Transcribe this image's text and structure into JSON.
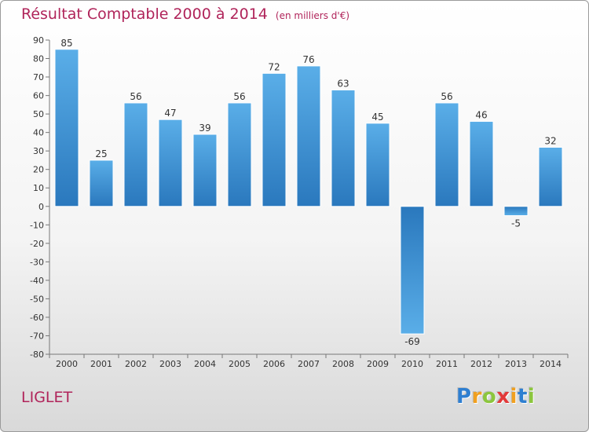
{
  "chart_data": {
    "type": "bar",
    "title": "Résultat Comptable 2000 à 2014",
    "unit_label": "(en milliers d'€)",
    "categories": [
      "2000",
      "2001",
      "2002",
      "2003",
      "2004",
      "2005",
      "2006",
      "2007",
      "2008",
      "2009",
      "2010",
      "2011",
      "2012",
      "2013",
      "2014"
    ],
    "values": [
      85,
      25,
      56,
      47,
      39,
      56,
      72,
      76,
      63,
      45,
      -69,
      56,
      46,
      -5,
      32
    ],
    "xlabel": "",
    "ylabel": "",
    "ylim": [
      -80,
      90
    ],
    "ytick_step": 10,
    "grid": false,
    "colors": {
      "bar_light": "#5aaee8",
      "bar_dark": "#2a78bd",
      "axis": "#777777",
      "text": "#333333"
    }
  },
  "commune": "LIGLET",
  "brand": {
    "letters": [
      "P",
      "r",
      "o",
      "x",
      "i",
      "t",
      "i"
    ],
    "colors": [
      "#2e7fd1",
      "#f0a020",
      "#8cc63e",
      "#e23a3a",
      "#f0a020",
      "#2e7fd1",
      "#8cc63e"
    ]
  }
}
